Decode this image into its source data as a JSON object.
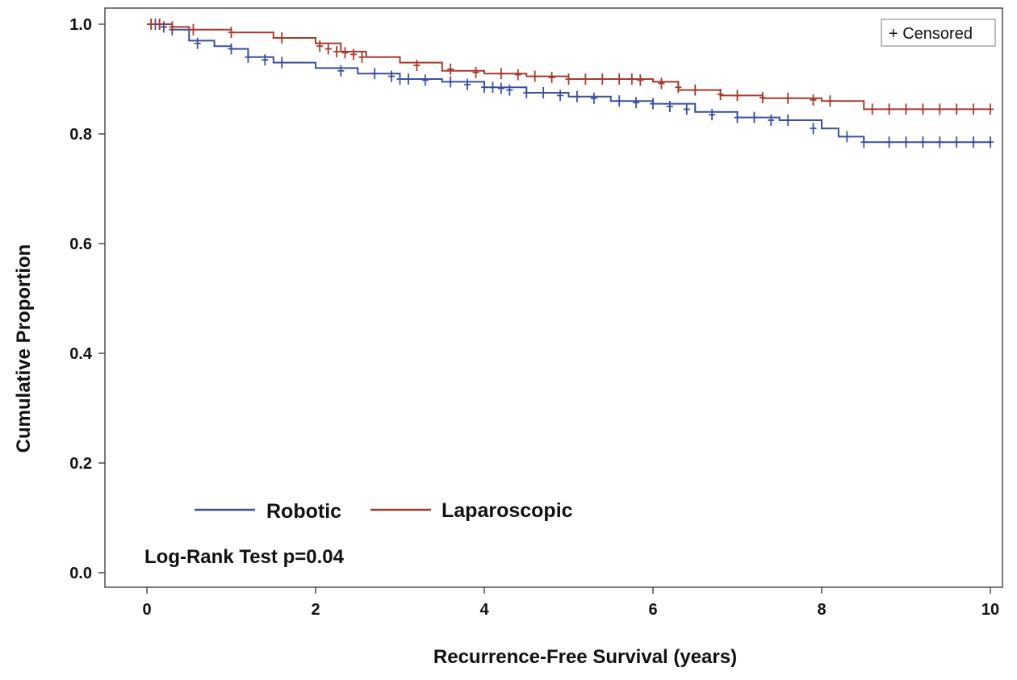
{
  "chart_data": {
    "type": "line",
    "title": "",
    "xlabel": "Recurrence-Free Survival (years)",
    "ylabel": "Cumulative Proportion",
    "xlim": [
      0,
      10
    ],
    "ylim": [
      0,
      1
    ],
    "x_ticks": [
      0,
      2,
      4,
      6,
      8,
      10
    ],
    "x_tick_labels": [
      "0",
      "2",
      "4",
      "6",
      "8",
      "10"
    ],
    "y_ticks": [
      0,
      0.2,
      0.4,
      0.6,
      0.8,
      1.0
    ],
    "y_tick_labels": [
      "0.0",
      "0.2",
      "0.4",
      "0.6",
      "0.8",
      "1.0"
    ],
    "censor_legend": "+ Censored",
    "annotation": "Log-Rank Test p=0.04",
    "legend_position": "bottom-left",
    "series": [
      {
        "name": "Robotic",
        "color": "#3b4f9e",
        "x": [
          0,
          0.3,
          0.5,
          0.8,
          1.0,
          1.2,
          1.5,
          2.0,
          2.5,
          3.0,
          3.5,
          4.0,
          4.5,
          5.0,
          5.5,
          6.0,
          6.5,
          7.0,
          7.5,
          8.0,
          8.2,
          8.5,
          10.0
        ],
        "values": [
          1.0,
          0.99,
          0.97,
          0.96,
          0.955,
          0.94,
          0.93,
          0.92,
          0.91,
          0.9,
          0.895,
          0.885,
          0.875,
          0.868,
          0.86,
          0.855,
          0.84,
          0.83,
          0.825,
          0.81,
          0.795,
          0.785,
          0.785
        ],
        "censor_x": [
          0.05,
          0.1,
          0.15,
          0.2,
          0.3,
          0.6,
          1.0,
          1.2,
          1.4,
          1.6,
          2.3,
          2.7,
          2.9,
          3.0,
          3.1,
          3.3,
          3.6,
          3.8,
          4.0,
          4.1,
          4.2,
          4.3,
          4.5,
          4.7,
          4.9,
          5.1,
          5.3,
          5.6,
          5.8,
          6.0,
          6.2,
          6.4,
          6.7,
          7.0,
          7.2,
          7.4,
          7.6,
          7.9,
          8.3,
          8.5,
          8.8,
          9.0,
          9.2,
          9.4,
          9.6,
          9.8,
          10.0
        ],
        "censor_y": [
          1.0,
          1.0,
          1.0,
          0.995,
          0.99,
          0.965,
          0.955,
          0.94,
          0.935,
          0.93,
          0.915,
          0.91,
          0.905,
          0.9,
          0.9,
          0.898,
          0.895,
          0.89,
          0.885,
          0.885,
          0.883,
          0.88,
          0.875,
          0.875,
          0.87,
          0.868,
          0.865,
          0.86,
          0.857,
          0.855,
          0.85,
          0.845,
          0.835,
          0.83,
          0.83,
          0.825,
          0.825,
          0.81,
          0.795,
          0.785,
          0.785,
          0.785,
          0.785,
          0.785,
          0.785,
          0.785,
          0.785
        ]
      },
      {
        "name": "Laparoscopic",
        "color": "#a33b2e",
        "x": [
          0,
          0.3,
          0.5,
          1.0,
          1.5,
          2.0,
          2.3,
          2.6,
          3.0,
          3.5,
          4.0,
          4.5,
          5.0,
          5.5,
          6.0,
          6.3,
          6.8,
          7.3,
          8.0,
          8.5,
          10.0
        ],
        "values": [
          1.0,
          0.995,
          0.99,
          0.985,
          0.975,
          0.965,
          0.95,
          0.94,
          0.93,
          0.915,
          0.91,
          0.905,
          0.9,
          0.9,
          0.895,
          0.88,
          0.87,
          0.865,
          0.86,
          0.845,
          0.845
        ],
        "censor_x": [
          0.05,
          0.15,
          0.3,
          0.55,
          1.0,
          1.6,
          2.05,
          2.15,
          2.25,
          2.35,
          2.45,
          2.55,
          3.2,
          3.6,
          3.9,
          4.2,
          4.4,
          4.6,
          4.8,
          5.0,
          5.2,
          5.4,
          5.6,
          5.75,
          5.85,
          6.1,
          6.3,
          6.5,
          6.8,
          7.0,
          7.3,
          7.6,
          7.9,
          8.1,
          8.6,
          8.8,
          9.0,
          9.2,
          9.4,
          9.6,
          9.8,
          10.0
        ],
        "censor_y": [
          1.0,
          1.0,
          0.995,
          0.99,
          0.985,
          0.975,
          0.96,
          0.955,
          0.95,
          0.948,
          0.945,
          0.94,
          0.925,
          0.918,
          0.912,
          0.91,
          0.908,
          0.905,
          0.903,
          0.9,
          0.9,
          0.9,
          0.9,
          0.9,
          0.898,
          0.892,
          0.885,
          0.88,
          0.872,
          0.87,
          0.866,
          0.865,
          0.862,
          0.86,
          0.845,
          0.845,
          0.845,
          0.845,
          0.845,
          0.845,
          0.845,
          0.845
        ]
      }
    ]
  }
}
